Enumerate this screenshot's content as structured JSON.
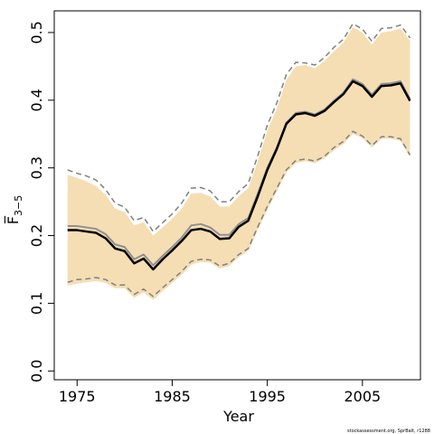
{
  "chart_data": {
    "type": "line",
    "x_label": "Year",
    "y_label": "F̅",
    "y_label_subscript": "3−5",
    "credit": "stockassessment.org, SprBalt, r1288",
    "x": [
      1974,
      1975,
      1976,
      1977,
      1978,
      1979,
      1980,
      1981,
      1982,
      1983,
      1984,
      1985,
      1986,
      1987,
      1988,
      1989,
      1990,
      1991,
      1992,
      1993,
      1994,
      1995,
      1996,
      1997,
      1998,
      1999,
      2000,
      2001,
      2002,
      2003,
      2004,
      2005,
      2006,
      2007,
      2008,
      2009,
      2010
    ],
    "band": {
      "color": "#f5deb3",
      "lower": [
        0.126,
        0.129,
        0.131,
        0.133,
        0.13,
        0.122,
        0.122,
        0.108,
        0.116,
        0.105,
        0.118,
        0.13,
        0.142,
        0.157,
        0.161,
        0.16,
        0.151,
        0.155,
        0.168,
        0.177,
        0.208,
        0.238,
        0.265,
        0.293,
        0.307,
        0.31,
        0.307,
        0.314,
        0.326,
        0.335,
        0.35,
        0.344,
        0.33,
        0.343,
        0.343,
        0.34,
        0.316
      ],
      "upper": [
        0.29,
        0.285,
        0.28,
        0.273,
        0.26,
        0.24,
        0.235,
        0.215,
        0.22,
        0.2,
        0.212,
        0.225,
        0.24,
        0.262,
        0.263,
        0.258,
        0.243,
        0.243,
        0.258,
        0.27,
        0.31,
        0.355,
        0.388,
        0.43,
        0.45,
        0.452,
        0.447,
        0.458,
        0.472,
        0.485,
        0.508,
        0.5,
        0.482,
        0.5,
        0.502,
        0.506,
        0.488
      ]
    },
    "series": [
      {
        "color": "#808080",
        "dashed": true,
        "values": [
          0.297,
          0.292,
          0.288,
          0.282,
          0.268,
          0.248,
          0.242,
          0.222,
          0.227,
          0.206,
          0.219,
          0.232,
          0.248,
          0.27,
          0.271,
          0.266,
          0.25,
          0.25,
          0.265,
          0.277,
          0.318,
          0.363,
          0.396,
          0.438,
          0.456,
          0.455,
          0.452,
          0.463,
          0.478,
          0.49,
          0.513,
          0.505,
          0.487,
          0.506,
          0.507,
          0.511,
          0.492
        ]
      },
      {
        "color": "#808080",
        "dashed": true,
        "values": [
          0.131,
          0.135,
          0.136,
          0.138,
          0.135,
          0.127,
          0.127,
          0.113,
          0.121,
          0.11,
          0.123,
          0.135,
          0.147,
          0.162,
          0.165,
          0.164,
          0.155,
          0.159,
          0.172,
          0.181,
          0.213,
          0.243,
          0.27,
          0.297,
          0.311,
          0.313,
          0.31,
          0.317,
          0.33,
          0.339,
          0.354,
          0.347,
          0.333,
          0.346,
          0.346,
          0.343,
          0.319
        ]
      },
      {
        "color": "#909090",
        "dashed": false,
        "values": [
          0.214,
          0.214,
          0.212,
          0.21,
          0.202,
          0.187,
          0.183,
          0.165,
          0.172,
          0.156,
          0.17,
          0.183,
          0.197,
          0.215,
          0.217,
          0.212,
          0.201,
          0.201,
          0.217,
          0.226,
          0.262,
          0.3,
          0.33,
          0.367,
          0.381,
          0.383,
          0.379,
          0.386,
          0.399,
          0.411,
          0.431,
          0.424,
          0.408,
          0.424,
          0.425,
          0.428,
          0.402
        ]
      },
      {
        "color": "#000000",
        "dashed": false,
        "values": [
          0.208,
          0.208,
          0.206,
          0.204,
          0.196,
          0.181,
          0.177,
          0.159,
          0.166,
          0.15,
          0.165,
          0.178,
          0.192,
          0.208,
          0.21,
          0.206,
          0.195,
          0.196,
          0.213,
          0.222,
          0.258,
          0.297,
          0.328,
          0.365,
          0.379,
          0.381,
          0.377,
          0.384,
          0.397,
          0.409,
          0.428,
          0.421,
          0.405,
          0.421,
          0.422,
          0.425,
          0.399
        ]
      }
    ],
    "xlim": [
      1972.6,
      2011.1
    ],
    "ylim": [
      -0.013,
      0.532
    ],
    "xticks": [
      1975,
      1985,
      1995,
      2005
    ],
    "yticks": [
      {
        "value": 0,
        "label": "0.0"
      },
      {
        "value": 0.1,
        "label": "0.1"
      },
      {
        "value": 0.2,
        "label": "0.2"
      },
      {
        "value": 0.3,
        "label": "0.3"
      },
      {
        "value": 0.4,
        "label": "0.4"
      },
      {
        "value": 0.5,
        "label": "0.5"
      }
    ]
  }
}
